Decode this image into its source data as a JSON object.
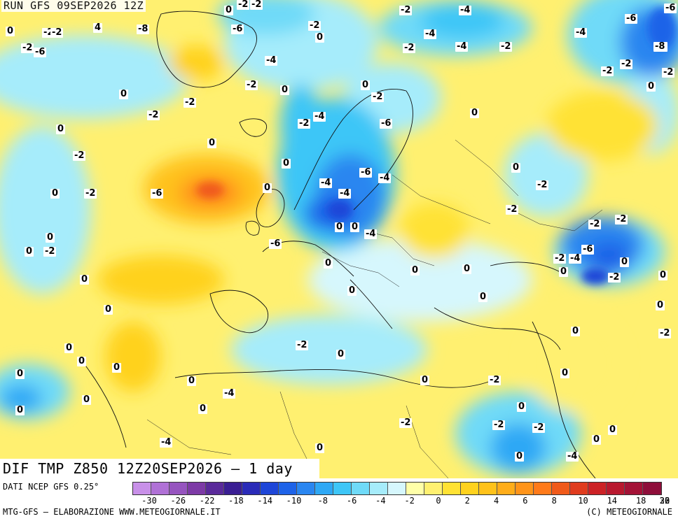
{
  "map": {
    "run_title": "RUN GFS 09SEP2026 12Z",
    "main_title": "DIF TMP Z850 12Z20SEP2026 — 1 day",
    "field": "DIF TMP Z850",
    "contour_labels": [
      {
        "text": "0"
      },
      {
        "text": "-2"
      },
      {
        "text": "-2"
      },
      {
        "text": "-2"
      },
      {
        "text": "-4"
      },
      {
        "text": "-6"
      },
      {
        "text": "0"
      },
      {
        "text": "-2"
      },
      {
        "text": "-2"
      },
      {
        "text": "4"
      },
      {
        "text": "-8"
      },
      {
        "text": "-6"
      },
      {
        "text": "0"
      },
      {
        "text": "0"
      },
      {
        "text": "-2"
      },
      {
        "text": "-4"
      },
      {
        "text": "-2"
      },
      {
        "text": "0"
      },
      {
        "text": "-4"
      },
      {
        "text": "-2"
      },
      {
        "text": "-4"
      },
      {
        "text": "-6"
      },
      {
        "text": "-2"
      },
      {
        "text": "-4"
      },
      {
        "text": "-8"
      },
      {
        "text": "-6"
      },
      {
        "text": "-2"
      },
      {
        "text": "-4"
      },
      {
        "text": "-2"
      },
      {
        "text": "-2"
      },
      {
        "text": "0"
      },
      {
        "text": "0"
      },
      {
        "text": "-2"
      },
      {
        "text": "0"
      },
      {
        "text": "-2"
      },
      {
        "text": "-6"
      },
      {
        "text": "0"
      },
      {
        "text": "-2"
      },
      {
        "text": "-4"
      },
      {
        "text": "-2"
      },
      {
        "text": "0"
      },
      {
        "text": "-2"
      },
      {
        "text": "0"
      },
      {
        "text": "0"
      },
      {
        "text": "-2"
      },
      {
        "text": "0"
      },
      {
        "text": "-2"
      },
      {
        "text": "-4"
      },
      {
        "text": "-4"
      },
      {
        "text": "-6"
      },
      {
        "text": "-4"
      },
      {
        "text": "0"
      },
      {
        "text": "-2"
      },
      {
        "text": "0"
      },
      {
        "text": "-6"
      },
      {
        "text": "-2"
      },
      {
        "text": "-2"
      },
      {
        "text": "-2"
      },
      {
        "text": "-4"
      },
      {
        "text": "0"
      },
      {
        "text": "0"
      },
      {
        "text": "0"
      },
      {
        "text": "0"
      },
      {
        "text": "-2"
      },
      {
        "text": "-6"
      },
      {
        "text": "0"
      },
      {
        "text": "-2"
      },
      {
        "text": "-4"
      },
      {
        "text": "-6"
      },
      {
        "text": "0"
      },
      {
        "text": "0"
      },
      {
        "text": "0"
      },
      {
        "text": "0"
      },
      {
        "text": "-2"
      },
      {
        "text": "0"
      },
      {
        "text": "0"
      },
      {
        "text": "0"
      },
      {
        "text": "0"
      },
      {
        "text": "0"
      },
      {
        "text": "0"
      },
      {
        "text": "0"
      },
      {
        "text": "-2"
      },
      {
        "text": "-2"
      },
      {
        "text": "0"
      },
      {
        "text": "0"
      },
      {
        "text": "0"
      },
      {
        "text": "0"
      },
      {
        "text": "0"
      },
      {
        "text": "0"
      },
      {
        "text": "-2"
      },
      {
        "text": "0"
      },
      {
        "text": "0"
      },
      {
        "text": "0"
      },
      {
        "text": "-4"
      },
      {
        "text": "0"
      },
      {
        "text": "0"
      },
      {
        "text": "-2"
      },
      {
        "text": "-2"
      },
      {
        "text": "-2"
      },
      {
        "text": "0"
      },
      {
        "text": "0"
      },
      {
        "text": "0"
      },
      {
        "text": "-4"
      },
      {
        "text": "0"
      },
      {
        "text": "0"
      },
      {
        "text": "-4"
      }
    ]
  },
  "legend": {
    "source_note": "DATI NCEP GFS 0.25°",
    "colors": [
      "#c890e8",
      "#b071d6",
      "#9654bf",
      "#7d3aa6",
      "#5a2a9a",
      "#3a1e93",
      "#2a2bb8",
      "#1e46d8",
      "#1e63e8",
      "#2a86f0",
      "#2ea8f5",
      "#3ec6f7",
      "#6fdaf8",
      "#a6ecfb",
      "#d6f7fd",
      "#ffffa8",
      "#fff070",
      "#ffe234",
      "#ffd21e",
      "#ffc21a",
      "#ffad1a",
      "#ff941a",
      "#ff7a1a",
      "#f05a1a",
      "#e03c1e",
      "#cc2226",
      "#b8182e",
      "#a31236",
      "#8e0e3a"
    ],
    "tick_labels": [
      "-30",
      "-26",
      "-22",
      "-18",
      "-14",
      "-10",
      "-8",
      "-6",
      "-4",
      "-2",
      "0",
      "2",
      "4",
      "6",
      "8",
      "10",
      "14",
      "18",
      "22",
      "26",
      "30"
    ]
  },
  "footer": {
    "credit_left": "MTG-GFS — ELABORAZIONE WWW.METEOGIORNALE.IT",
    "credit_right": "(C) METEOGIORNALE"
  }
}
